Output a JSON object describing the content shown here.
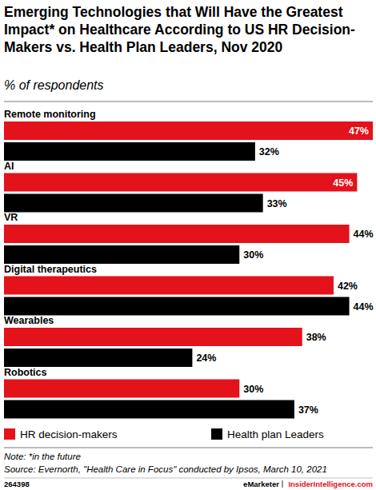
{
  "chart_data": {
    "type": "bar",
    "orientation": "horizontal",
    "title": "Emerging Technologies that Will Have the Greatest Impact* on Healthcare According to US HR Decision-Makers vs. Health Plan Leaders, Nov 2020",
    "subtitle": "% of respondents",
    "categories": [
      "Remote monitoring",
      "AI",
      "VR",
      "Digital therapeutics",
      "Wearables",
      "Robotics"
    ],
    "series": [
      {
        "name": "HR decision-makers",
        "color": "#e3121b",
        "values": [
          47,
          45,
          44,
          42,
          38,
          30
        ],
        "value_labels": [
          "47%",
          "45%",
          "44%",
          "42%",
          "38%",
          "30%"
        ]
      },
      {
        "name": "Health plan Leaders",
        "color": "#000000",
        "values": [
          32,
          33,
          30,
          44,
          24,
          37
        ],
        "value_labels": [
          "32%",
          "33%",
          "30%",
          "44%",
          "24%",
          "37%"
        ]
      }
    ],
    "xlim": [
      0,
      47
    ],
    "tick_labels": false,
    "grid": false,
    "data_labels": true,
    "legend": "bottom",
    "note": "Note: *in the future",
    "source": "Source: Evernorth, \"Health Care in Focus\" conducted by Ipsos, March 10, 2021",
    "footer": {
      "id": "264398",
      "brand": "eMarketer",
      "site": "InsiderIntelligence.com"
    }
  }
}
